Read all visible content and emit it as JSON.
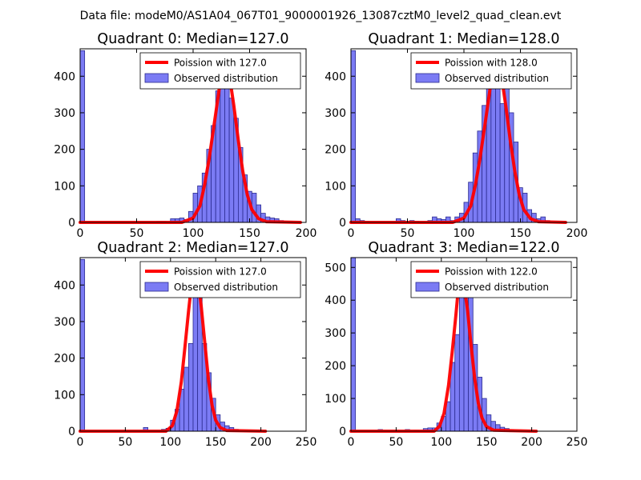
{
  "figure": {
    "suptitle": "Data file: modeM0/AS1A04_067T01_9000001926_13087cztM0_level2_quad_clean.evt"
  },
  "colors": {
    "bar_fill": "#7b7bf4",
    "bar_edge": "#2b2b90",
    "poisson_line": "#ff0000",
    "axes": "#000000",
    "background": "#ffffff"
  },
  "legend": {
    "poisson_prefix": "Poission with ",
    "observed_label": "Observed distribution",
    "location": "upper-right"
  },
  "chart_data": [
    {
      "type": "bar",
      "title": "Quadrant 0: Median=127.0",
      "median": 127.0,
      "poisson_label": "Poission with 127.0",
      "observed_label": "Observed distribution",
      "xlim": [
        0,
        200
      ],
      "ylim": [
        0,
        475
      ],
      "xticks": [
        0,
        50,
        100,
        150,
        200
      ],
      "yticks": [
        0,
        100,
        200,
        300,
        400
      ],
      "bin_width": 4,
      "bins": [
        {
          "x": 0,
          "y": 470
        },
        {
          "x": 68,
          "y": 3
        },
        {
          "x": 72,
          "y": 3
        },
        {
          "x": 80,
          "y": 10
        },
        {
          "x": 84,
          "y": 10
        },
        {
          "x": 88,
          "y": 12
        },
        {
          "x": 92,
          "y": 8
        },
        {
          "x": 96,
          "y": 30
        },
        {
          "x": 100,
          "y": 80
        },
        {
          "x": 104,
          "y": 100
        },
        {
          "x": 108,
          "y": 135
        },
        {
          "x": 112,
          "y": 200
        },
        {
          "x": 116,
          "y": 265
        },
        {
          "x": 120,
          "y": 360
        },
        {
          "x": 124,
          "y": 425
        },
        {
          "x": 128,
          "y": 425
        },
        {
          "x": 132,
          "y": 340
        },
        {
          "x": 136,
          "y": 285
        },
        {
          "x": 140,
          "y": 205
        },
        {
          "x": 144,
          "y": 130
        },
        {
          "x": 148,
          "y": 85
        },
        {
          "x": 152,
          "y": 80
        },
        {
          "x": 156,
          "y": 48
        },
        {
          "x": 160,
          "y": 25
        },
        {
          "x": 164,
          "y": 15
        },
        {
          "x": 168,
          "y": 12
        },
        {
          "x": 172,
          "y": 10
        },
        {
          "x": 176,
          "y": 5
        },
        {
          "x": 180,
          "y": 3
        },
        {
          "x": 184,
          "y": 2
        }
      ],
      "poisson_points": [
        [
          0,
          0
        ],
        [
          90,
          0
        ],
        [
          100,
          12
        ],
        [
          106,
          45
        ],
        [
          110,
          100
        ],
        [
          114,
          170
        ],
        [
          118,
          255
        ],
        [
          122,
          340
        ],
        [
          125,
          410
        ],
        [
          127,
          455
        ],
        [
          129,
          450
        ],
        [
          132,
          405
        ],
        [
          136,
          320
        ],
        [
          140,
          225
        ],
        [
          144,
          140
        ],
        [
          148,
          75
        ],
        [
          152,
          35
        ],
        [
          158,
          10
        ],
        [
          165,
          2
        ],
        [
          195,
          0
        ]
      ]
    },
    {
      "type": "bar",
      "title": "Quadrant 1: Median=128.0",
      "median": 128.0,
      "poisson_label": "Poission with 128.0",
      "observed_label": "Observed distribution",
      "xlim": [
        0,
        200
      ],
      "ylim": [
        0,
        475
      ],
      "xticks": [
        0,
        50,
        100,
        150,
        200
      ],
      "yticks": [
        0,
        100,
        200,
        300,
        400
      ],
      "bin_width": 4,
      "bins": [
        {
          "x": 0,
          "y": 470
        },
        {
          "x": 4,
          "y": 10
        },
        {
          "x": 8,
          "y": 5
        },
        {
          "x": 12,
          "y": 3
        },
        {
          "x": 40,
          "y": 10
        },
        {
          "x": 44,
          "y": 5
        },
        {
          "x": 52,
          "y": 5
        },
        {
          "x": 56,
          "y": 3
        },
        {
          "x": 68,
          "y": 5
        },
        {
          "x": 72,
          "y": 15
        },
        {
          "x": 76,
          "y": 10
        },
        {
          "x": 80,
          "y": 8
        },
        {
          "x": 84,
          "y": 15
        },
        {
          "x": 88,
          "y": 5
        },
        {
          "x": 92,
          "y": 15
        },
        {
          "x": 96,
          "y": 25
        },
        {
          "x": 100,
          "y": 55
        },
        {
          "x": 104,
          "y": 110
        },
        {
          "x": 108,
          "y": 190
        },
        {
          "x": 112,
          "y": 250
        },
        {
          "x": 116,
          "y": 320
        },
        {
          "x": 120,
          "y": 380
        },
        {
          "x": 124,
          "y": 440
        },
        {
          "x": 128,
          "y": 420
        },
        {
          "x": 132,
          "y": 325
        },
        {
          "x": 136,
          "y": 400
        },
        {
          "x": 140,
          "y": 300
        },
        {
          "x": 144,
          "y": 220
        },
        {
          "x": 148,
          "y": 95
        },
        {
          "x": 152,
          "y": 80
        },
        {
          "x": 156,
          "y": 35
        },
        {
          "x": 160,
          "y": 25
        },
        {
          "x": 164,
          "y": 10
        },
        {
          "x": 168,
          "y": 15
        },
        {
          "x": 172,
          "y": 5
        }
      ],
      "poisson_points": [
        [
          0,
          0
        ],
        [
          90,
          0
        ],
        [
          100,
          12
        ],
        [
          106,
          45
        ],
        [
          110,
          100
        ],
        [
          114,
          170
        ],
        [
          118,
          255
        ],
        [
          122,
          340
        ],
        [
          125,
          410
        ],
        [
          128,
          455
        ],
        [
          130,
          450
        ],
        [
          133,
          405
        ],
        [
          137,
          320
        ],
        [
          141,
          225
        ],
        [
          145,
          140
        ],
        [
          149,
          75
        ],
        [
          153,
          35
        ],
        [
          159,
          10
        ],
        [
          166,
          2
        ],
        [
          190,
          0
        ]
      ]
    },
    {
      "type": "bar",
      "title": "Quadrant 2: Median=127.0",
      "median": 127.0,
      "poisson_label": "Poission with 127.0",
      "observed_label": "Observed distribution",
      "xlim": [
        0,
        250
      ],
      "ylim": [
        0,
        475
      ],
      "xticks": [
        0,
        50,
        100,
        150,
        200,
        250
      ],
      "yticks": [
        0,
        100,
        200,
        300,
        400
      ],
      "bin_width": 5,
      "bins": [
        {
          "x": 0,
          "y": 470
        },
        {
          "x": 70,
          "y": 10
        },
        {
          "x": 90,
          "y": 5
        },
        {
          "x": 95,
          "y": 8
        },
        {
          "x": 100,
          "y": 30
        },
        {
          "x": 105,
          "y": 60
        },
        {
          "x": 110,
          "y": 115
        },
        {
          "x": 115,
          "y": 175
        },
        {
          "x": 120,
          "y": 240
        },
        {
          "x": 125,
          "y": 440
        },
        {
          "x": 130,
          "y": 385
        },
        {
          "x": 135,
          "y": 240
        },
        {
          "x": 140,
          "y": 160
        },
        {
          "x": 145,
          "y": 90
        },
        {
          "x": 150,
          "y": 45
        },
        {
          "x": 155,
          "y": 25
        },
        {
          "x": 160,
          "y": 15
        },
        {
          "x": 165,
          "y": 10
        },
        {
          "x": 170,
          "y": 5
        }
      ],
      "poisson_points": [
        [
          0,
          0
        ],
        [
          95,
          0
        ],
        [
          102,
          15
        ],
        [
          107,
          55
        ],
        [
          112,
          135
        ],
        [
          116,
          230
        ],
        [
          120,
          330
        ],
        [
          124,
          420
        ],
        [
          127,
          450
        ],
        [
          130,
          425
        ],
        [
          134,
          340
        ],
        [
          138,
          240
        ],
        [
          142,
          140
        ],
        [
          146,
          70
        ],
        [
          150,
          30
        ],
        [
          155,
          10
        ],
        [
          162,
          2
        ],
        [
          205,
          0
        ]
      ]
    },
    {
      "type": "bar",
      "title": "Quadrant 3: Median=122.0",
      "median": 122.0,
      "poisson_label": "Poission with 122.0",
      "observed_label": "Observed distribution",
      "xlim": [
        0,
        250
      ],
      "ylim": [
        0,
        530
      ],
      "xticks": [
        0,
        50,
        100,
        150,
        200,
        250
      ],
      "yticks": [
        0,
        100,
        200,
        300,
        400,
        500
      ],
      "bin_width": 5,
      "bins": [
        {
          "x": 0,
          "y": 530
        },
        {
          "x": 30,
          "y": 5
        },
        {
          "x": 45,
          "y": 3
        },
        {
          "x": 60,
          "y": 5
        },
        {
          "x": 70,
          "y": 3
        },
        {
          "x": 80,
          "y": 8
        },
        {
          "x": 85,
          "y": 10
        },
        {
          "x": 90,
          "y": 10
        },
        {
          "x": 95,
          "y": 25
        },
        {
          "x": 100,
          "y": 45
        },
        {
          "x": 105,
          "y": 90
        },
        {
          "x": 110,
          "y": 210
        },
        {
          "x": 115,
          "y": 295
        },
        {
          "x": 120,
          "y": 495
        },
        {
          "x": 125,
          "y": 505
        },
        {
          "x": 130,
          "y": 420
        },
        {
          "x": 135,
          "y": 265
        },
        {
          "x": 140,
          "y": 165
        },
        {
          "x": 145,
          "y": 100
        },
        {
          "x": 150,
          "y": 50
        },
        {
          "x": 155,
          "y": 30
        },
        {
          "x": 160,
          "y": 20
        },
        {
          "x": 165,
          "y": 12
        },
        {
          "x": 170,
          "y": 8
        },
        {
          "x": 175,
          "y": 3
        }
      ],
      "poisson_points": [
        [
          0,
          0
        ],
        [
          92,
          0
        ],
        [
          98,
          15
        ],
        [
          103,
          55
        ],
        [
          108,
          140
        ],
        [
          112,
          240
        ],
        [
          116,
          350
        ],
        [
          119,
          440
        ],
        [
          122,
          475
        ],
        [
          125,
          450
        ],
        [
          129,
          370
        ],
        [
          133,
          260
        ],
        [
          137,
          160
        ],
        [
          141,
          85
        ],
        [
          145,
          40
        ],
        [
          150,
          14
        ],
        [
          158,
          3
        ],
        [
          205,
          0
        ]
      ]
    }
  ]
}
